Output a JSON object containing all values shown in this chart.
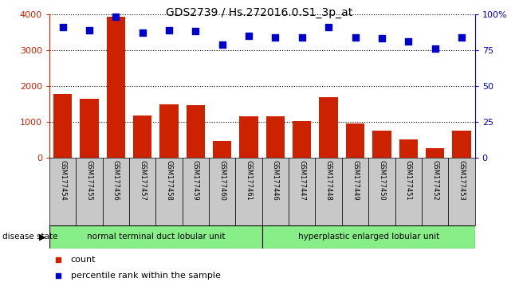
{
  "title": "GDS2739 / Hs.272016.0.S1_3p_at",
  "samples": [
    "GSM177454",
    "GSM177455",
    "GSM177456",
    "GSM177457",
    "GSM177458",
    "GSM177459",
    "GSM177460",
    "GSM177461",
    "GSM177446",
    "GSM177447",
    "GSM177448",
    "GSM177449",
    "GSM177450",
    "GSM177451",
    "GSM177452",
    "GSM177453"
  ],
  "counts": [
    1780,
    1640,
    3920,
    1180,
    1490,
    1460,
    480,
    1160,
    1150,
    1020,
    1680,
    960,
    760,
    520,
    270,
    760
  ],
  "percentiles": [
    91,
    89,
    98,
    87,
    89,
    88,
    79,
    85,
    84,
    84,
    91,
    84,
    83,
    81,
    76,
    84
  ],
  "bar_color": "#cc2200",
  "dot_color": "#0000cc",
  "ylim_left": [
    0,
    4000
  ],
  "ylim_right": [
    0,
    100
  ],
  "yticks_left": [
    0,
    1000,
    2000,
    3000,
    4000
  ],
  "yticks_right": [
    0,
    25,
    50,
    75,
    100
  ],
  "yticklabels_right": [
    "0",
    "25",
    "50",
    "75",
    "100%"
  ],
  "groups": [
    {
      "label": "normal terminal duct lobular unit",
      "start": 0,
      "end": 8,
      "color": "#88ee88"
    },
    {
      "label": "hyperplastic enlarged lobular unit",
      "start": 8,
      "end": 16,
      "color": "#88ee88"
    }
  ],
  "disease_state_label": "disease state",
  "legend_count_label": "count",
  "legend_pct_label": "percentile rank within the sample",
  "tick_area_color": "#c8c8c8",
  "fig_width": 6.51,
  "fig_height": 3.54,
  "dpi": 100
}
